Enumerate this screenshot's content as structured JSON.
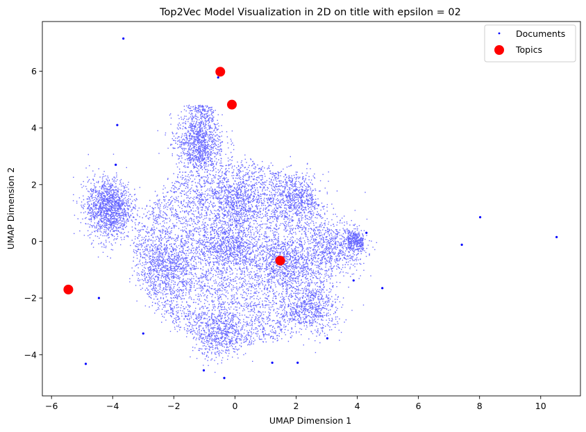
{
  "chart_data": {
    "type": "scatter",
    "title": "Top2Vec Model Visualization in 2D on title with epsilon = 02",
    "xlabel": "UMAP Dimension 1",
    "ylabel": "UMAP Dimension 2",
    "xlim": [
      -6.3,
      11.3
    ],
    "ylim": [
      -5.45,
      7.75
    ],
    "xticks": [
      -6,
      -4,
      -2,
      0,
      2,
      4,
      6,
      8,
      10
    ],
    "yticks": [
      -4,
      -2,
      0,
      2,
      4,
      6
    ],
    "grid": false,
    "legend_position": "top-right",
    "series": [
      {
        "name": "Documents",
        "color": "#0000ff",
        "marker": "dot",
        "cluster_centers": [
          [
            -0.2,
            -0.2
          ],
          [
            1.6,
            -0.8
          ],
          [
            -1.2,
            3.5
          ],
          [
            2.0,
            1.5
          ],
          [
            -2.2,
            -0.9
          ],
          [
            -4.2,
            1.3
          ],
          [
            2.6,
            -2.4
          ],
          [
            -0.5,
            -3.3
          ],
          [
            0.0,
            1.4
          ],
          [
            3.4,
            -0.2
          ]
        ],
        "outliers": [
          [
            -3.65,
            7.15
          ],
          [
            -3.85,
            4.1
          ],
          [
            -0.55,
            5.78
          ],
          [
            7.42,
            -0.12
          ],
          [
            8.02,
            0.85
          ],
          [
            10.52,
            0.15
          ],
          [
            -4.88,
            -4.32
          ],
          [
            -4.45,
            -2.0
          ],
          [
            4.82,
            -1.65
          ],
          [
            3.88,
            -1.38
          ],
          [
            -1.02,
            -4.55
          ],
          [
            -0.35,
            -4.82
          ],
          [
            1.22,
            -4.28
          ],
          [
            2.05,
            -4.28
          ],
          [
            3.02,
            -3.42
          ],
          [
            -3.0,
            -3.25
          ],
          [
            -3.9,
            2.7
          ],
          [
            4.3,
            0.3
          ]
        ]
      },
      {
        "name": "Topics",
        "color": "#ff0000",
        "marker": "circle",
        "points": [
          [
            -0.48,
            5.98
          ],
          [
            -0.1,
            4.82
          ],
          [
            1.48,
            -0.68
          ],
          [
            -5.45,
            -1.7
          ]
        ]
      }
    ]
  }
}
